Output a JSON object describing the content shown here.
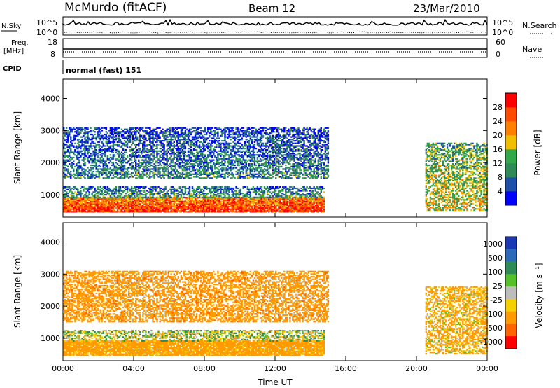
{
  "header": {
    "station": "McMurdo (fitACF)",
    "beam": "Beam 12",
    "date": "23/Mar/2010"
  },
  "strip_panels": {
    "nsky": {
      "label": "N.Sky",
      "ticks": [
        "10^5",
        "10^0"
      ]
    },
    "nsearch": {
      "label": "N.Search",
      "ticks": [
        "10^5",
        "10^0"
      ]
    },
    "freq": {
      "label_line1": "Freq.",
      "label_line2": "[MHz]",
      "ticks": [
        "18",
        "8"
      ]
    },
    "nave": {
      "label": "Nave",
      "ticks": [
        "60",
        "0"
      ]
    },
    "cpid": {
      "label": "CPID",
      "value": "normal (fast) 151"
    }
  },
  "colors": {
    "power_scale": [
      "#0000ff",
      "#1e50aa",
      "#2e8b57",
      "#33a84a",
      "#f0c000",
      "#ff8000",
      "#ff4a00",
      "#ff0000"
    ],
    "velocity_scale": [
      "#1a37b5",
      "#2a6ab8",
      "#2e8b57",
      "#55c02a",
      "#bdbdbd",
      "#f5d000",
      "#ff9a00",
      "#ff6400",
      "#ff0000"
    ]
  },
  "chart_data": [
    {
      "type": "heatmap",
      "name": "power",
      "xlabel": "",
      "ylabel": "Slant Range [km]",
      "ylim": [
        300,
        4600
      ],
      "yticks": [
        "1000",
        "2000",
        "3000",
        "4000"
      ],
      "colorbar": {
        "label": "Power [dB]",
        "ticks": [
          "4",
          "8",
          "12",
          "16",
          "20",
          "24",
          "28"
        ]
      },
      "features": [
        {
          "region": "near-range strong band",
          "t_start_h": 0,
          "t_end_h": 14.8,
          "range_km": [
            450,
            900
          ],
          "power_dB": 28
        },
        {
          "region": "band above near range",
          "t_start_h": 0,
          "t_end_h": 14.8,
          "range_km": [
            900,
            1250
          ],
          "power_dB": 12
        },
        {
          "region": "mid-range patches",
          "t_start_h": 0,
          "t_end_h": 15,
          "range_km": [
            1500,
            3100
          ],
          "power_dB": 10
        },
        {
          "region": "recovery after 20:30",
          "t_start_h": 20.5,
          "t_end_h": 24,
          "range_km": [
            500,
            2600
          ],
          "power_dB": 18
        }
      ]
    },
    {
      "type": "heatmap",
      "name": "velocity",
      "xlabel": "Time UT",
      "ylabel": "Slant Range [km]",
      "ylim": [
        300,
        4600
      ],
      "yticks": [
        "1000",
        "2000",
        "3000",
        "4000"
      ],
      "xticks": [
        "00:00",
        "04:00",
        "08:00",
        "12:00",
        "16:00",
        "20:00",
        "00:00"
      ],
      "colorbar": {
        "label": "Velocity [m s⁻¹]",
        "ticks": [
          "1000",
          "500",
          "100",
          "25",
          "-25",
          "-100",
          "-500",
          "-1000"
        ]
      },
      "features": [
        {
          "region": "near-range ground scatter",
          "t_start_h": 0,
          "t_end_h": 14.8,
          "range_km": [
            450,
            900
          ],
          "velocity_ms": -150
        },
        {
          "region": "upper near-range",
          "t_start_h": 0,
          "t_end_h": 14.8,
          "range_km": [
            900,
            1250
          ],
          "velocity_ms": 0
        },
        {
          "region": "mid-range patches",
          "t_start_h": 0,
          "t_end_h": 15,
          "range_km": [
            1500,
            3100
          ],
          "velocity_ms": -200
        },
        {
          "region": "recovery after 20:30",
          "t_start_h": 20.5,
          "t_end_h": 24,
          "range_km": [
            500,
            2600
          ],
          "velocity_ms": -100
        }
      ]
    }
  ]
}
